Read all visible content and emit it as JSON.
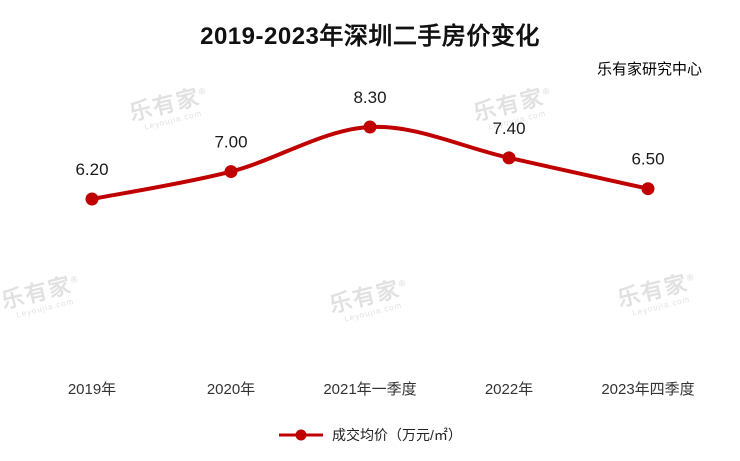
{
  "title": "2019-2023年深圳二手房价变化",
  "source": "乐有家研究中心",
  "chart_data": {
    "type": "line",
    "categories": [
      "2019年",
      "2020年",
      "2021年一季度",
      "2022年",
      "2023年四季度"
    ],
    "values": [
      6.2,
      7.0,
      8.3,
      7.4,
      6.5
    ],
    "value_labels": [
      "6.20",
      "7.00",
      "8.30",
      "7.40",
      "6.50"
    ],
    "series_name": "成交均价（万元/㎡）",
    "title": "2019-2023年深圳二手房价变化",
    "xlabel": "",
    "ylabel": "",
    "ylim": [
      6.0,
      8.6
    ],
    "grid": false,
    "legend_position": "bottom",
    "line_color": "#c00000",
    "label_color": "#1a1a1a",
    "axis_label_color": "#333333"
  },
  "legend": {
    "label": "成交均价（万元/㎡）"
  },
  "watermark": {
    "brand": "乐有家",
    "reg": "®",
    "sub": "Leyoujia.com"
  }
}
